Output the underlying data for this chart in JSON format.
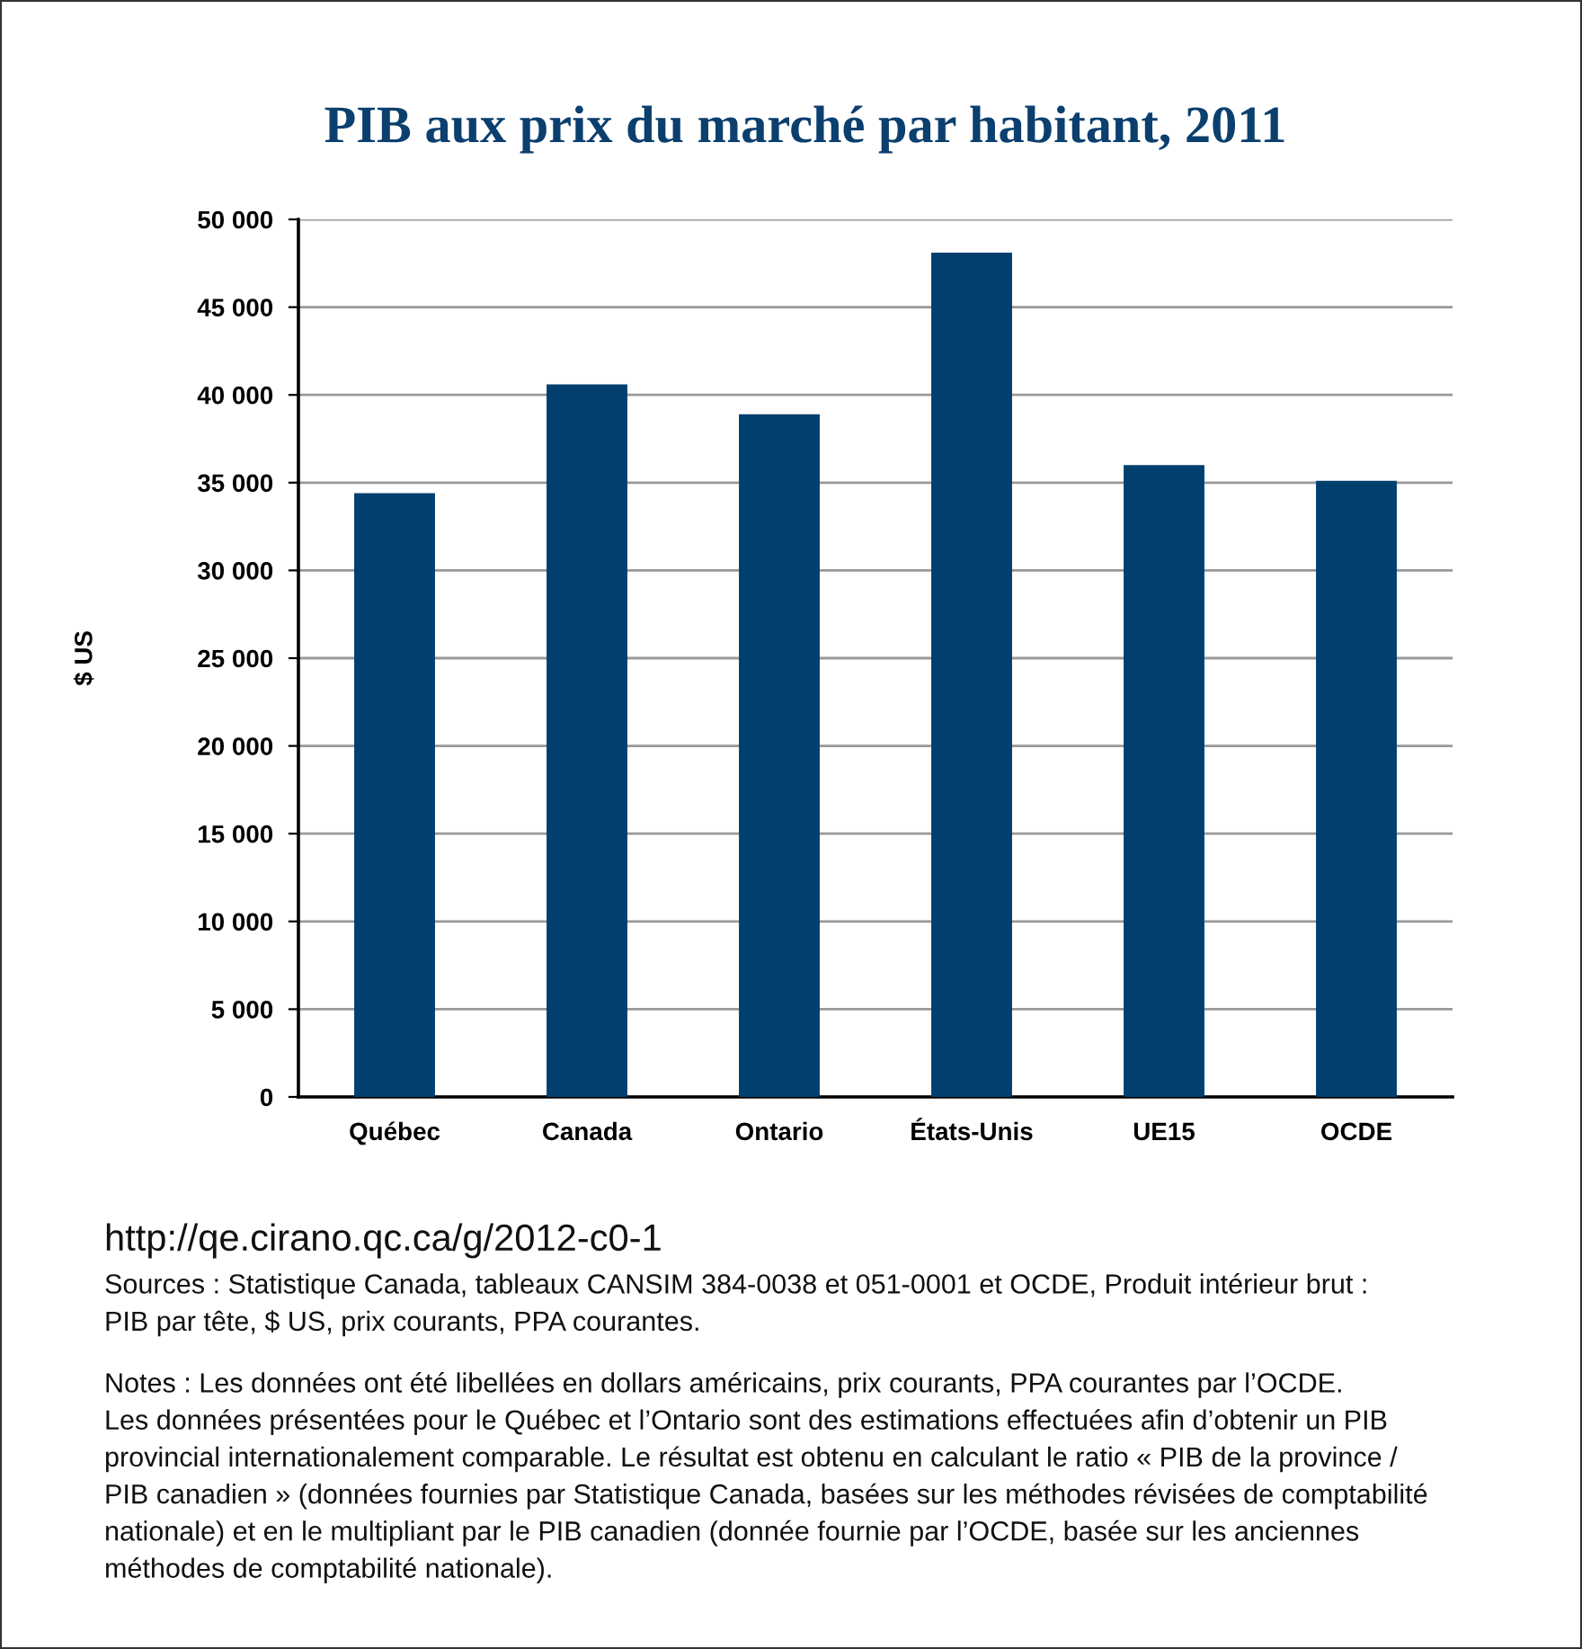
{
  "chart_data": {
    "type": "bar",
    "title": "PIB aux prix du marché par habitant, 2011",
    "ylabel": "$ US",
    "categories": [
      "Québec",
      "Canada",
      "Ontario",
      "États-Unis",
      "UE15",
      "OCDE"
    ],
    "values": [
      34400,
      40600,
      38900,
      48100,
      36000,
      35100
    ],
    "color": "#003f6e",
    "ylim": [
      0,
      50000
    ],
    "yticks": [
      0,
      {
        "value": 5000,
        "label": "5 000"
      },
      {
        "value": 10000,
        "label": "10 000"
      },
      {
        "value": 15000,
        "label": "15 000"
      },
      {
        "value": 20000,
        "label": "20 000"
      },
      {
        "value": 25000,
        "label": "25 000"
      },
      {
        "value": 30000,
        "label": "30 000"
      },
      {
        "value": 35000,
        "label": "35 000"
      },
      {
        "value": 40000,
        "label": "40 000"
      },
      {
        "value": 45000,
        "label": "45 000"
      },
      {
        "value": 50000,
        "label": "50 000"
      }
    ],
    "grid": "y",
    "legend": false,
    "annotations": [
      "http://qe.cirano.qc.ca/g/2012-c0-1",
      "Sources : Statistique Canada, tableaux CANSIM 384-0038 et 051-0001 et OCDE, Produit intérieur brut :\nPIB par tête, $ US, prix courants, PPA courantes.",
      "Notes : Les données ont été libellées en dollars américains, prix courants, PPA courantes par l’OCDE.\nLes données présentées pour le Québec et l’Ontario sont des estimations effectuées afin d’obtenir un PIB\nprovincial internationalement comparable. Le résultat est obtenu en calculant le ratio « PIB de la province /\nPIB canadien » (données fournies par Statistique Canada, basées sur les méthodes révisées de comptabilité\nnationale) et en le multipliant par le PIB canadien (donnée fournie par l’OCDE, basée sur les anciennes\nméthodes de comptabilité nationale)."
    ]
  }
}
